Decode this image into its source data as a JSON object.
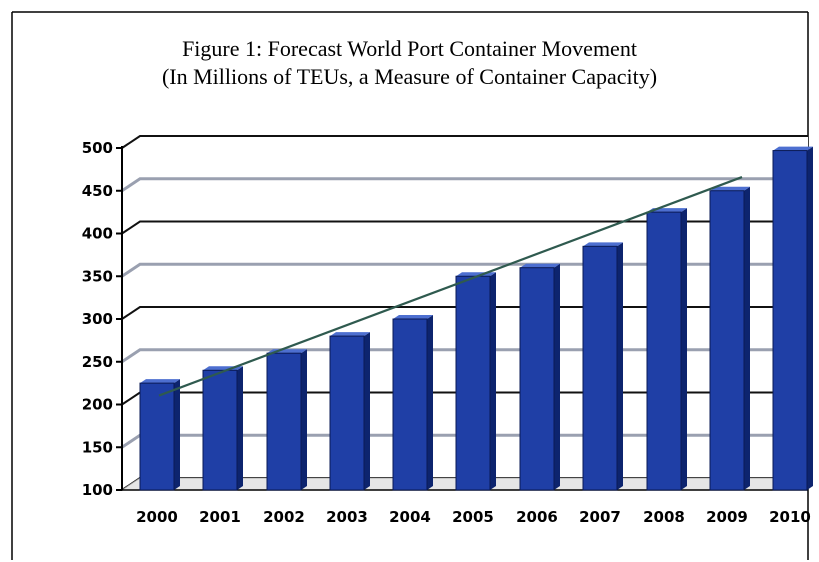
{
  "chart_data": {
    "type": "bar",
    "title": "Figure 1: Forecast World Port Container Movement",
    "subtitle": "(In Millions of TEUs, a Measure of Container Capacity)",
    "categories": [
      "2000",
      "2001",
      "2002",
      "2003",
      "2004",
      "2005",
      "2006",
      "2007",
      "2008",
      "2009",
      "2010"
    ],
    "values": [
      225,
      240,
      260,
      280,
      300,
      350,
      360,
      385,
      425,
      450,
      497
    ],
    "yticks": [
      "100",
      "150",
      "200",
      "250",
      "300",
      "350",
      "400",
      "450",
      "500"
    ],
    "ylim": [
      100,
      500
    ],
    "trendline": true,
    "grid": true,
    "xlabel": "",
    "ylabel": "",
    "bar_color": "#1f3fa6",
    "trend_color": "#2f5a4f"
  }
}
